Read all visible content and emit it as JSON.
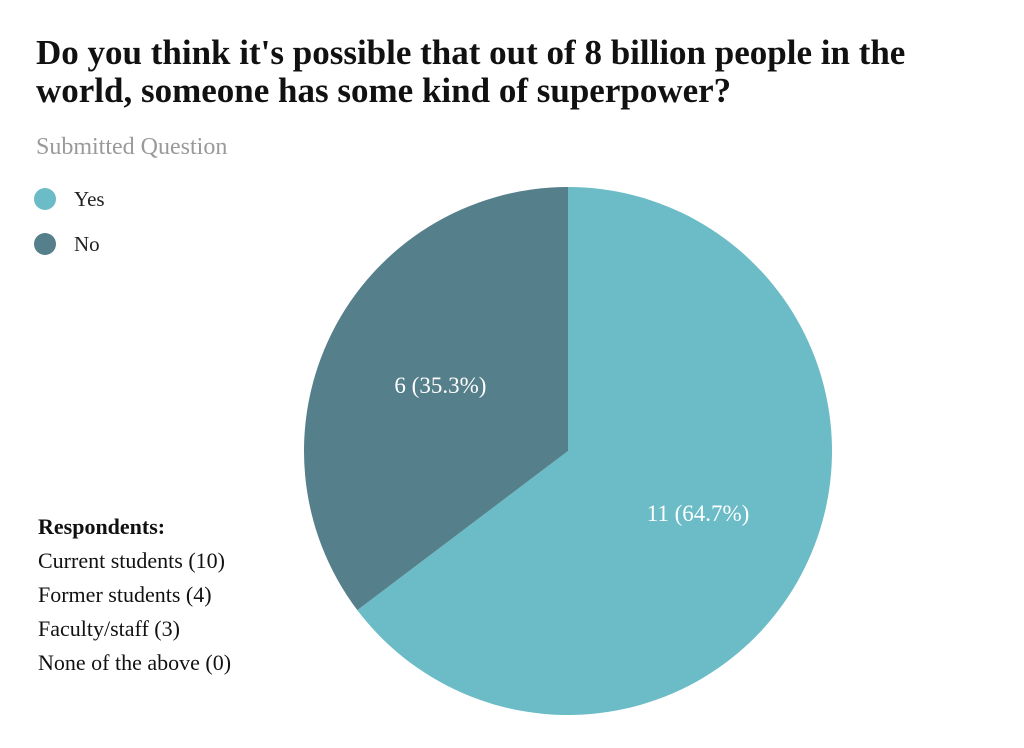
{
  "title": "Do you think it's possible that out of 8 billion people in the world, someone has some kind of superpower?",
  "subtitle": "Submitted Question",
  "respondents": {
    "heading": "Respondents:",
    "items": [
      "Current students (10)",
      "Former students (4)",
      "Faculty/staff (3)",
      "None of the above (0)"
    ]
  },
  "colors": {
    "yes": "#6bbcc6",
    "no": "#557f8b"
  },
  "chart_data": {
    "type": "pie",
    "legend_position": "top-left",
    "slices": [
      {
        "label": "Yes",
        "value": 11,
        "display": "11 (64.7%)",
        "color": "#6bbcc6"
      },
      {
        "label": "No",
        "value": 6,
        "display": "6 (35.3%)",
        "color": "#557f8b"
      }
    ]
  }
}
